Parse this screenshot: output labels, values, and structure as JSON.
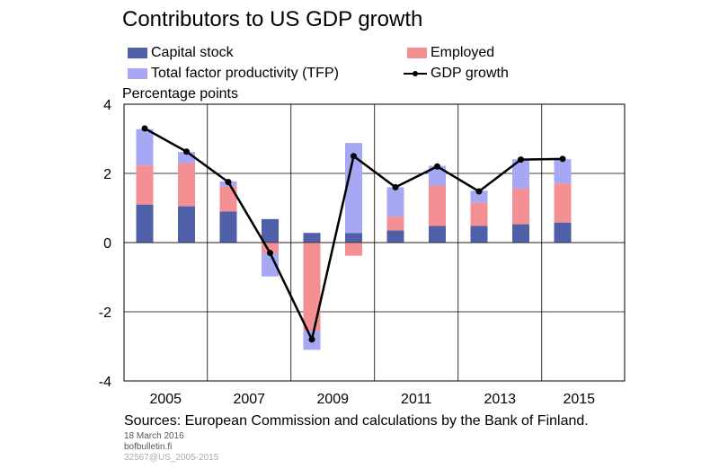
{
  "chart_data": {
    "type": "bar",
    "title": "Contributors to US GDP growth",
    "ylabel": "Percentage points",
    "ylim": [
      -4,
      4
    ],
    "yticks": [
      -4,
      -2,
      0,
      2,
      4
    ],
    "ytick_labels": [
      "-4",
      "-2",
      "0",
      "2",
      "4"
    ],
    "categories": [
      "2005",
      "2006",
      "2007",
      "2008",
      "2009",
      "2010",
      "2011",
      "2012",
      "2013",
      "2014",
      "2015"
    ],
    "xtick_labels": [
      "2005",
      "",
      "2007",
      "",
      "2009",
      "",
      "2011",
      "",
      "2013",
      "",
      "2015"
    ],
    "stacked": true,
    "grid": true,
    "legend_position": "top",
    "series": [
      {
        "name": "Capital stock",
        "kind": "bar",
        "color": "#4f5fa8",
        "values": [
          1.1,
          1.05,
          0.9,
          0.68,
          0.28,
          0.28,
          0.35,
          0.48,
          0.48,
          0.53,
          0.58
        ]
      },
      {
        "name": "Employed",
        "kind": "bar",
        "color": "#f49093",
        "values": [
          1.13,
          1.25,
          0.72,
          -0.3,
          -2.55,
          -0.38,
          0.4,
          1.17,
          0.67,
          1.03,
          1.13
        ]
      },
      {
        "name": "Total factor productivity (TFP)",
        "kind": "bar",
        "color": "#a6a8f3",
        "values": [
          1.05,
          0.32,
          0.15,
          -0.68,
          -0.55,
          2.6,
          0.85,
          0.57,
          0.35,
          0.85,
          0.7
        ]
      },
      {
        "name": "GDP growth",
        "kind": "line",
        "color": "#000000",
        "values": [
          3.3,
          2.63,
          1.75,
          -0.3,
          -2.8,
          2.5,
          1.6,
          2.2,
          1.48,
          2.4,
          2.42
        ]
      }
    ]
  },
  "footer": {
    "sources": "Sources: European Commission and calculations by the Bank of Finland.",
    "date": "18 March 2016",
    "site": "bofbulletin.fi",
    "id": "32567@US_2005-2015"
  }
}
